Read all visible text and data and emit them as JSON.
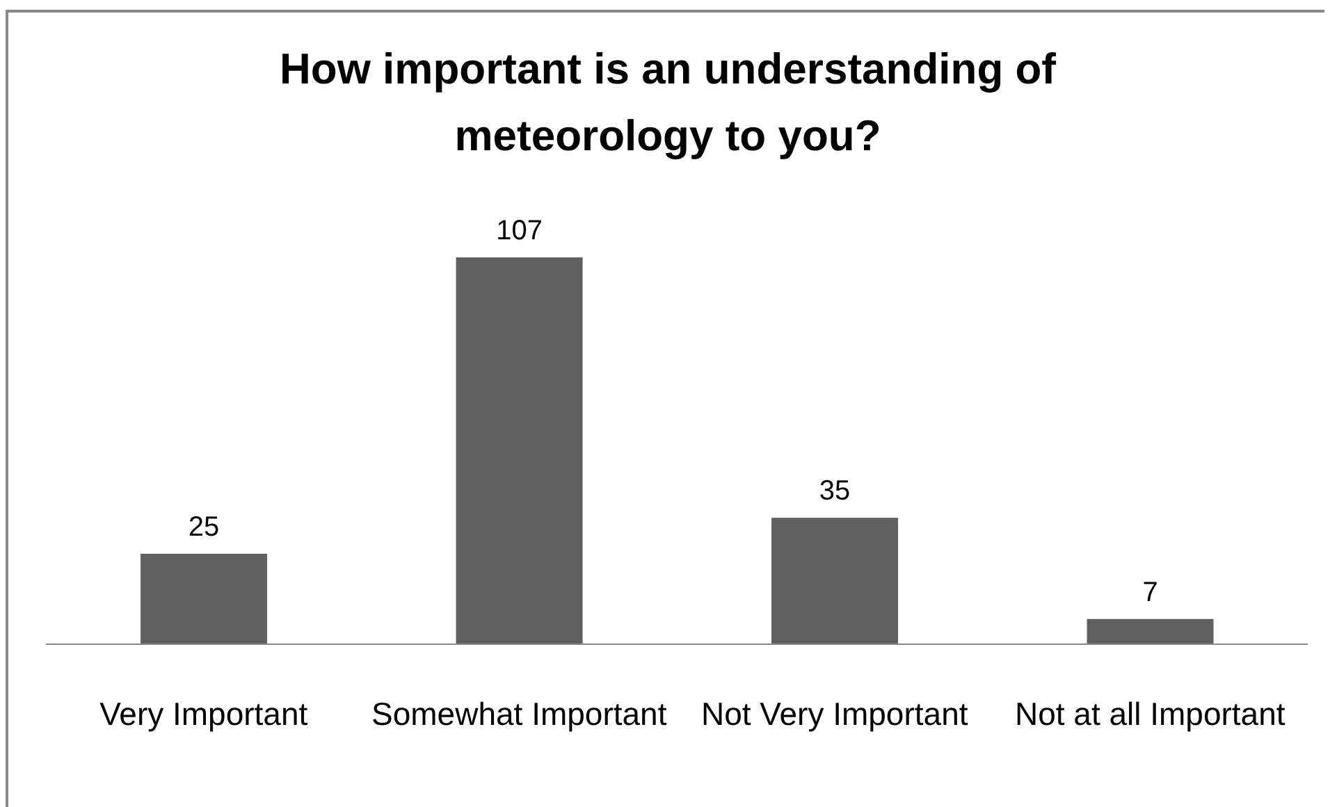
{
  "chart_data": {
    "type": "bar",
    "title": "How important is an understanding of meteorology to you?",
    "categories": [
      "Very Important",
      "Somewhat Important",
      "Not Very Important",
      "Not at all Important"
    ],
    "values": [
      25,
      107,
      35,
      7
    ],
    "color": "#5f5f5f",
    "data_labels": true
  }
}
